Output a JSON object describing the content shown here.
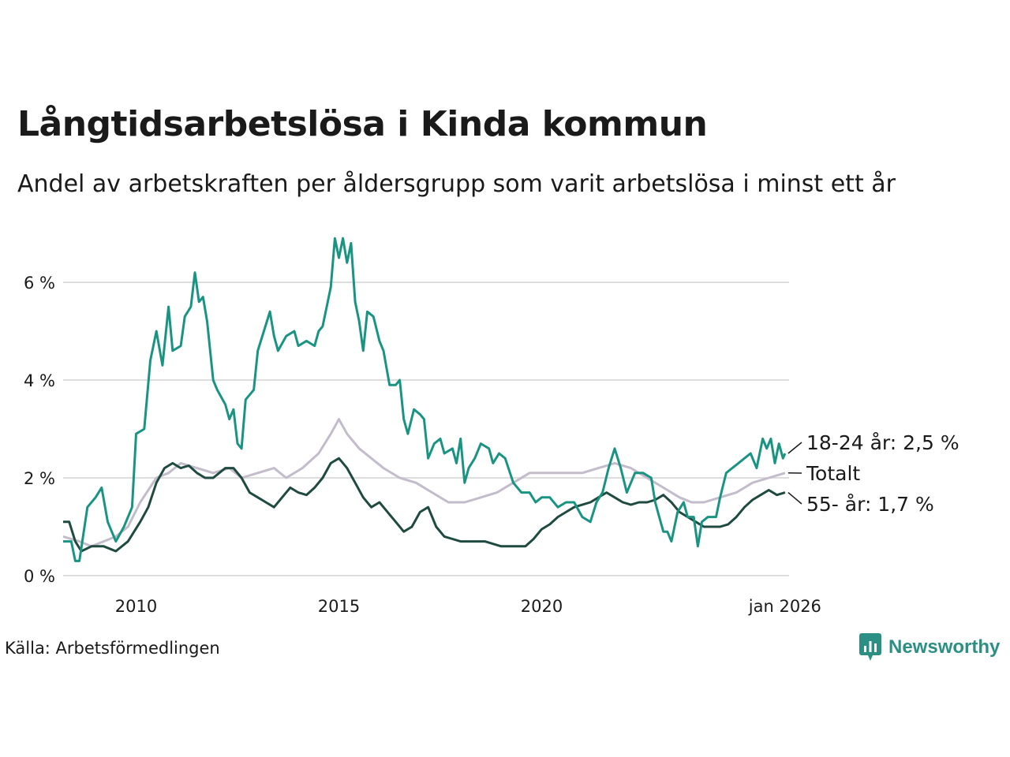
{
  "title": "Långtidsarbetslösa i Kinda kommun",
  "subtitle": "Andel av arbetskraften per åldersgrupp som varit arbetslösa i minst ett år",
  "source": "Källa: Arbetsförmedlingen",
  "brand": "Newsworthy",
  "colors": {
    "young": "#1a9482",
    "total": "#c2bccb",
    "old": "#1f4a40",
    "grid": "#dddddd",
    "brand": "#2b8f84"
  },
  "chart_data": {
    "type": "line",
    "ylim": [
      0,
      7
    ],
    "yticks": [
      0,
      2,
      4,
      6
    ],
    "ytick_labels": [
      "0 %",
      "2 %",
      "4 %",
      "6 %"
    ],
    "xlim": [
      2008.2,
      2026.1
    ],
    "xticks": [
      2010,
      2015,
      2020,
      2026.0
    ],
    "xtick_labels": [
      "2010",
      "2015",
      "2020",
      "jan 2026"
    ],
    "series": [
      {
        "key": "total",
        "name": "Totalt",
        "end_label": "Totalt",
        "points": [
          [
            2008.2,
            0.8
          ],
          [
            2008.6,
            0.7
          ],
          [
            2008.9,
            0.6
          ],
          [
            2009.2,
            0.7
          ],
          [
            2009.5,
            0.8
          ],
          [
            2009.8,
            1.0
          ],
          [
            2010.1,
            1.5
          ],
          [
            2010.5,
            2.0
          ],
          [
            2010.8,
            2.1
          ],
          [
            2011.1,
            2.3
          ],
          [
            2011.5,
            2.2
          ],
          [
            2011.9,
            2.1
          ],
          [
            2012.3,
            2.2
          ],
          [
            2012.6,
            2.0
          ],
          [
            2013.0,
            2.1
          ],
          [
            2013.4,
            2.2
          ],
          [
            2013.7,
            2.0
          ],
          [
            2014.1,
            2.2
          ],
          [
            2014.5,
            2.5
          ],
          [
            2014.8,
            2.9
          ],
          [
            2015.0,
            3.2
          ],
          [
            2015.2,
            2.9
          ],
          [
            2015.5,
            2.6
          ],
          [
            2015.8,
            2.4
          ],
          [
            2016.1,
            2.2
          ],
          [
            2016.5,
            2.0
          ],
          [
            2016.9,
            1.9
          ],
          [
            2017.3,
            1.7
          ],
          [
            2017.7,
            1.5
          ],
          [
            2018.1,
            1.5
          ],
          [
            2018.5,
            1.6
          ],
          [
            2018.9,
            1.7
          ],
          [
            2019.3,
            1.9
          ],
          [
            2019.7,
            2.1
          ],
          [
            2020.2,
            2.1
          ],
          [
            2020.6,
            2.1
          ],
          [
            2021.0,
            2.1
          ],
          [
            2021.4,
            2.2
          ],
          [
            2021.8,
            2.3
          ],
          [
            2022.2,
            2.2
          ],
          [
            2022.6,
            2.0
          ],
          [
            2023.0,
            1.8
          ],
          [
            2023.4,
            1.6
          ],
          [
            2023.7,
            1.5
          ],
          [
            2024.0,
            1.5
          ],
          [
            2024.4,
            1.6
          ],
          [
            2024.8,
            1.7
          ],
          [
            2025.2,
            1.9
          ],
          [
            2025.6,
            2.0
          ],
          [
            2026.0,
            2.1
          ]
        ]
      },
      {
        "key": "old",
        "name": "55- år",
        "end_label": "55- år: 1,7 %",
        "points": [
          [
            2008.2,
            1.1
          ],
          [
            2008.35,
            1.1
          ],
          [
            2008.5,
            0.7
          ],
          [
            2008.65,
            0.5
          ],
          [
            2008.9,
            0.6
          ],
          [
            2009.2,
            0.6
          ],
          [
            2009.5,
            0.5
          ],
          [
            2009.8,
            0.7
          ],
          [
            2010.1,
            1.1
          ],
          [
            2010.3,
            1.4
          ],
          [
            2010.5,
            1.9
          ],
          [
            2010.7,
            2.2
          ],
          [
            2010.9,
            2.3
          ],
          [
            2011.1,
            2.2
          ],
          [
            2011.3,
            2.25
          ],
          [
            2011.5,
            2.1
          ],
          [
            2011.7,
            2.0
          ],
          [
            2011.9,
            2.0
          ],
          [
            2012.2,
            2.2
          ],
          [
            2012.4,
            2.2
          ],
          [
            2012.6,
            2.0
          ],
          [
            2012.8,
            1.7
          ],
          [
            2013.0,
            1.6
          ],
          [
            2013.2,
            1.5
          ],
          [
            2013.4,
            1.4
          ],
          [
            2013.6,
            1.6
          ],
          [
            2013.8,
            1.8
          ],
          [
            2014.0,
            1.7
          ],
          [
            2014.2,
            1.65
          ],
          [
            2014.4,
            1.8
          ],
          [
            2014.6,
            2.0
          ],
          [
            2014.8,
            2.3
          ],
          [
            2015.0,
            2.4
          ],
          [
            2015.2,
            2.2
          ],
          [
            2015.4,
            1.9
          ],
          [
            2015.6,
            1.6
          ],
          [
            2015.8,
            1.4
          ],
          [
            2016.0,
            1.5
          ],
          [
            2016.2,
            1.3
          ],
          [
            2016.4,
            1.1
          ],
          [
            2016.6,
            0.9
          ],
          [
            2016.8,
            1.0
          ],
          [
            2017.0,
            1.3
          ],
          [
            2017.2,
            1.4
          ],
          [
            2017.4,
            1.0
          ],
          [
            2017.6,
            0.8
          ],
          [
            2017.8,
            0.75
          ],
          [
            2018.0,
            0.7
          ],
          [
            2018.2,
            0.7
          ],
          [
            2018.4,
            0.7
          ],
          [
            2018.6,
            0.7
          ],
          [
            2018.8,
            0.65
          ],
          [
            2019.0,
            0.6
          ],
          [
            2019.2,
            0.6
          ],
          [
            2019.4,
            0.6
          ],
          [
            2019.6,
            0.6
          ],
          [
            2019.8,
            0.75
          ],
          [
            2020.0,
            0.95
          ],
          [
            2020.2,
            1.05
          ],
          [
            2020.4,
            1.2
          ],
          [
            2020.6,
            1.3
          ],
          [
            2020.8,
            1.4
          ],
          [
            2021.0,
            1.45
          ],
          [
            2021.2,
            1.5
          ],
          [
            2021.4,
            1.6
          ],
          [
            2021.6,
            1.7
          ],
          [
            2021.8,
            1.6
          ],
          [
            2022.0,
            1.5
          ],
          [
            2022.2,
            1.45
          ],
          [
            2022.4,
            1.5
          ],
          [
            2022.6,
            1.5
          ],
          [
            2022.8,
            1.55
          ],
          [
            2023.0,
            1.65
          ],
          [
            2023.2,
            1.5
          ],
          [
            2023.4,
            1.3
          ],
          [
            2023.6,
            1.2
          ],
          [
            2023.8,
            1.1
          ],
          [
            2024.0,
            1.0
          ],
          [
            2024.2,
            1.0
          ],
          [
            2024.4,
            1.0
          ],
          [
            2024.6,
            1.05
          ],
          [
            2024.8,
            1.2
          ],
          [
            2025.0,
            1.4
          ],
          [
            2025.2,
            1.55
          ],
          [
            2025.4,
            1.65
          ],
          [
            2025.6,
            1.75
          ],
          [
            2025.8,
            1.65
          ],
          [
            2026.0,
            1.7
          ]
        ]
      },
      {
        "key": "young",
        "name": "18-24 år",
        "end_label": "18-24 år: 2,5 %",
        "points": [
          [
            2008.2,
            0.7
          ],
          [
            2008.4,
            0.7
          ],
          [
            2008.5,
            0.3
          ],
          [
            2008.6,
            0.3
          ],
          [
            2008.8,
            1.4
          ],
          [
            2009.0,
            1.6
          ],
          [
            2009.15,
            1.8
          ],
          [
            2009.3,
            1.1
          ],
          [
            2009.5,
            0.7
          ],
          [
            2009.7,
            1.0
          ],
          [
            2009.9,
            1.4
          ],
          [
            2010.0,
            2.9
          ],
          [
            2010.2,
            3.0
          ],
          [
            2010.35,
            4.4
          ],
          [
            2010.5,
            5.0
          ],
          [
            2010.65,
            4.3
          ],
          [
            2010.8,
            5.5
          ],
          [
            2010.9,
            4.6
          ],
          [
            2011.1,
            4.7
          ],
          [
            2011.2,
            5.3
          ],
          [
            2011.35,
            5.5
          ],
          [
            2011.45,
            6.2
          ],
          [
            2011.55,
            5.6
          ],
          [
            2011.65,
            5.7
          ],
          [
            2011.75,
            5.2
          ],
          [
            2011.9,
            4.0
          ],
          [
            2012.0,
            3.8
          ],
          [
            2012.2,
            3.5
          ],
          [
            2012.3,
            3.2
          ],
          [
            2012.4,
            3.4
          ],
          [
            2012.5,
            2.7
          ],
          [
            2012.6,
            2.6
          ],
          [
            2012.7,
            3.6
          ],
          [
            2012.9,
            3.8
          ],
          [
            2013.0,
            4.6
          ],
          [
            2013.15,
            5.0
          ],
          [
            2013.3,
            5.4
          ],
          [
            2013.4,
            4.9
          ],
          [
            2013.5,
            4.6
          ],
          [
            2013.7,
            4.9
          ],
          [
            2013.9,
            5.0
          ],
          [
            2014.0,
            4.7
          ],
          [
            2014.2,
            4.8
          ],
          [
            2014.4,
            4.7
          ],
          [
            2014.5,
            5.0
          ],
          [
            2014.6,
            5.1
          ],
          [
            2014.8,
            5.9
          ],
          [
            2014.9,
            6.9
          ],
          [
            2015.0,
            6.5
          ],
          [
            2015.1,
            6.9
          ],
          [
            2015.2,
            6.4
          ],
          [
            2015.3,
            6.8
          ],
          [
            2015.4,
            5.6
          ],
          [
            2015.5,
            5.2
          ],
          [
            2015.6,
            4.6
          ],
          [
            2015.7,
            5.4
          ],
          [
            2015.85,
            5.3
          ],
          [
            2016.0,
            4.8
          ],
          [
            2016.1,
            4.6
          ],
          [
            2016.25,
            3.9
          ],
          [
            2016.4,
            3.9
          ],
          [
            2016.5,
            4.0
          ],
          [
            2016.6,
            3.2
          ],
          [
            2016.7,
            2.9
          ],
          [
            2016.85,
            3.4
          ],
          [
            2017.0,
            3.3
          ],
          [
            2017.1,
            3.2
          ],
          [
            2017.2,
            2.4
          ],
          [
            2017.35,
            2.7
          ],
          [
            2017.5,
            2.8
          ],
          [
            2017.6,
            2.5
          ],
          [
            2017.8,
            2.6
          ],
          [
            2017.9,
            2.3
          ],
          [
            2018.0,
            2.8
          ],
          [
            2018.1,
            1.9
          ],
          [
            2018.2,
            2.2
          ],
          [
            2018.35,
            2.4
          ],
          [
            2018.5,
            2.7
          ],
          [
            2018.7,
            2.6
          ],
          [
            2018.8,
            2.3
          ],
          [
            2018.95,
            2.5
          ],
          [
            2019.1,
            2.4
          ],
          [
            2019.3,
            1.9
          ],
          [
            2019.5,
            1.7
          ],
          [
            2019.7,
            1.7
          ],
          [
            2019.85,
            1.5
          ],
          [
            2020.0,
            1.6
          ],
          [
            2020.2,
            1.6
          ],
          [
            2020.4,
            1.4
          ],
          [
            2020.6,
            1.5
          ],
          [
            2020.8,
            1.5
          ],
          [
            2021.0,
            1.2
          ],
          [
            2021.2,
            1.1
          ],
          [
            2021.35,
            1.5
          ],
          [
            2021.5,
            1.7
          ],
          [
            2021.65,
            2.2
          ],
          [
            2021.8,
            2.6
          ],
          [
            2021.95,
            2.2
          ],
          [
            2022.1,
            1.7
          ],
          [
            2022.3,
            2.1
          ],
          [
            2022.5,
            2.1
          ],
          [
            2022.7,
            2.0
          ],
          [
            2022.8,
            1.5
          ],
          [
            2022.9,
            1.2
          ],
          [
            2023.0,
            0.9
          ],
          [
            2023.1,
            0.9
          ],
          [
            2023.2,
            0.7
          ],
          [
            2023.35,
            1.3
          ],
          [
            2023.5,
            1.5
          ],
          [
            2023.6,
            1.2
          ],
          [
            2023.75,
            1.2
          ],
          [
            2023.85,
            0.6
          ],
          [
            2023.95,
            1.1
          ],
          [
            2024.1,
            1.2
          ],
          [
            2024.3,
            1.2
          ],
          [
            2024.4,
            1.6
          ],
          [
            2024.55,
            2.1
          ],
          [
            2024.7,
            2.2
          ],
          [
            2024.85,
            2.3
          ],
          [
            2025.0,
            2.4
          ],
          [
            2025.15,
            2.5
          ],
          [
            2025.3,
            2.2
          ],
          [
            2025.45,
            2.8
          ],
          [
            2025.55,
            2.6
          ],
          [
            2025.65,
            2.8
          ],
          [
            2025.75,
            2.3
          ],
          [
            2025.85,
            2.7
          ],
          [
            2025.95,
            2.4
          ],
          [
            2026.0,
            2.5
          ]
        ]
      }
    ]
  }
}
